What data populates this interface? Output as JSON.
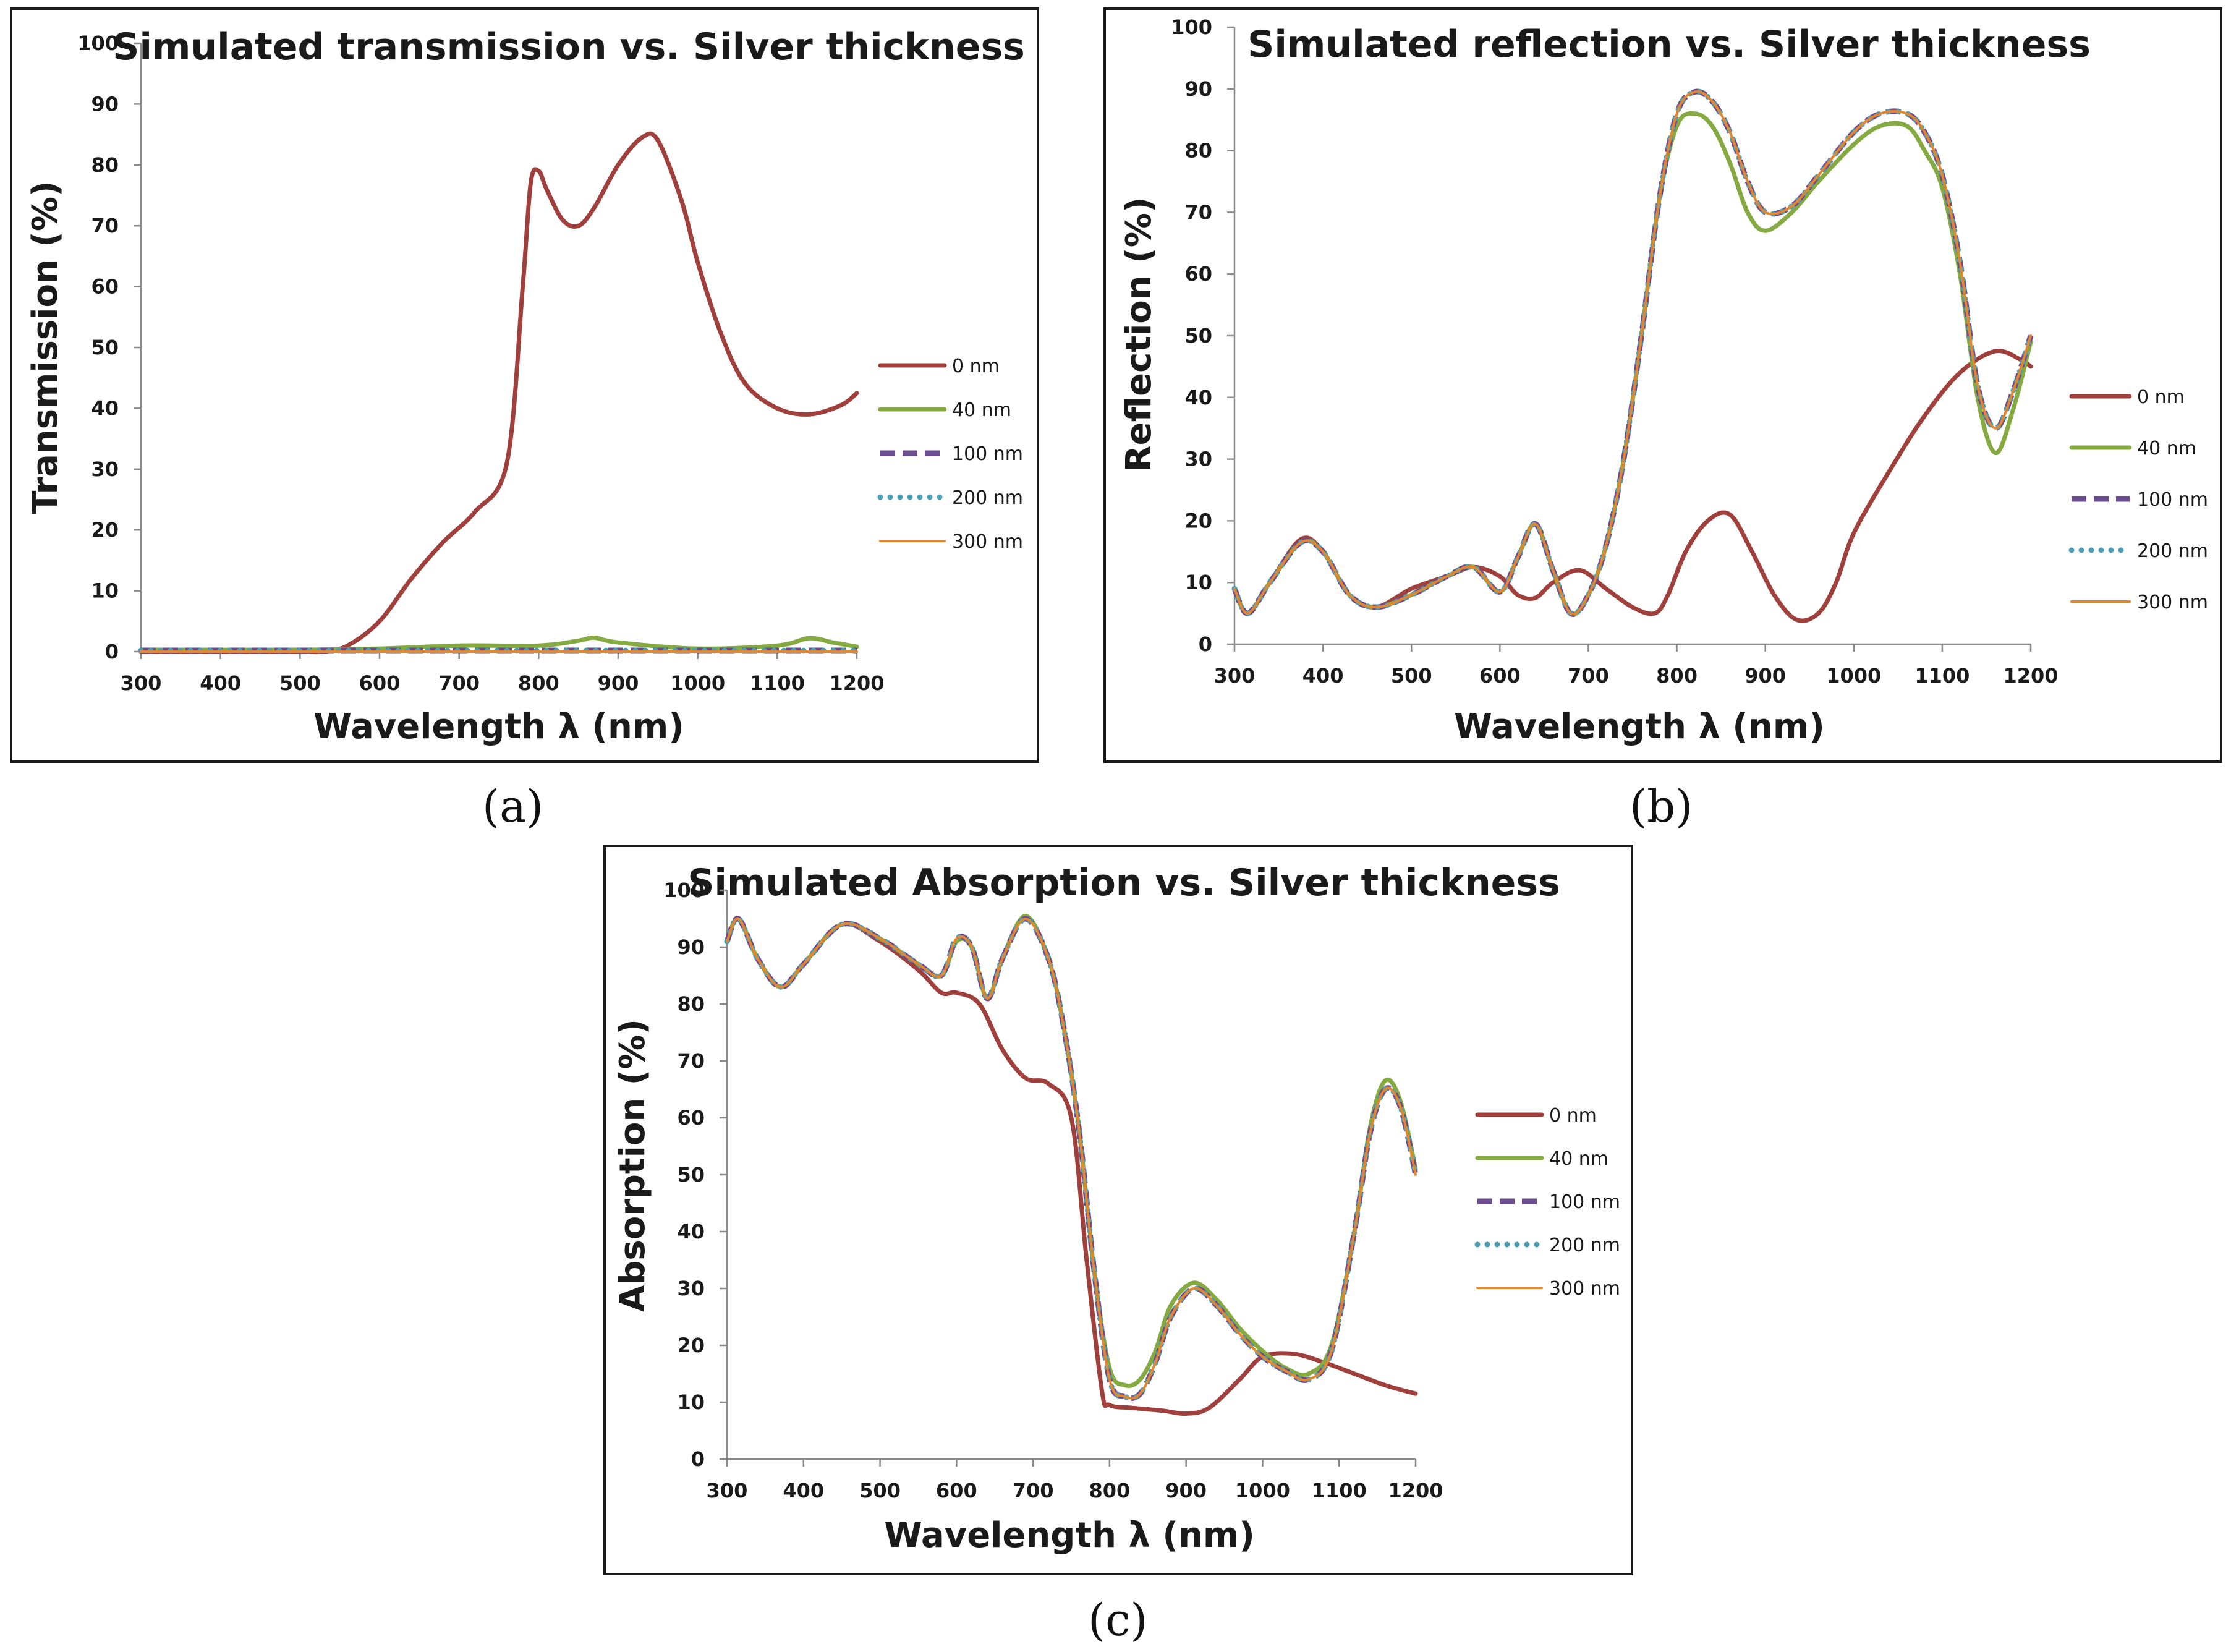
{
  "series_styles": [
    {
      "name": "0 nm",
      "color": "#a0403c",
      "dash": "",
      "width": 7,
      "cap": "round"
    },
    {
      "name": "40 nm",
      "color": "#86aa42",
      "dash": "",
      "width": 7,
      "cap": "round"
    },
    {
      "name": "100 nm",
      "color": "#6b4c8e",
      "dash": "24 12",
      "width": 9,
      "cap": "butt"
    },
    {
      "name": "200 nm",
      "color": "#4a9fb5",
      "dash": "0 16",
      "width": 9,
      "cap": "round"
    },
    {
      "name": "300 nm",
      "color": "#e2862f",
      "dash": "",
      "width": 4,
      "cap": "round"
    }
  ],
  "panel_labels": [
    "(a)",
    "(b)",
    "(c)"
  ],
  "chart_data": [
    {
      "type": "line",
      "title": "Simulated transmission vs. Silver thickness",
      "xlabel": "Wavelength λ (nm)",
      "ylabel": "Transmission (%)",
      "xlim": [
        300,
        1200
      ],
      "ylim": [
        0,
        100
      ],
      "xticks": [
        300,
        400,
        500,
        600,
        700,
        800,
        900,
        1000,
        1100,
        1200
      ],
      "yticks": [
        0,
        10,
        20,
        30,
        40,
        50,
        60,
        70,
        80,
        90,
        100
      ],
      "legend_position": "right",
      "series": [
        {
          "name": "0 nm",
          "x": [
            300,
            400,
            500,
            530,
            560,
            600,
            640,
            680,
            720,
            760,
            780,
            790,
            800,
            810,
            830,
            850,
            870,
            900,
            930,
            950,
            980,
            1000,
            1030,
            1060,
            1100,
            1140,
            1180,
            1200
          ],
          "y": [
            0,
            0,
            0,
            0,
            1,
            5,
            12,
            18,
            23,
            31,
            60,
            77,
            79,
            76,
            71,
            70,
            73,
            80,
            84.5,
            84,
            74,
            64,
            52,
            44,
            40,
            39,
            40.5,
            42.5
          ]
        },
        {
          "name": "40 nm",
          "x": [
            300,
            500,
            600,
            700,
            800,
            850,
            870,
            900,
            1000,
            1100,
            1140,
            1170,
            1200
          ],
          "y": [
            0.3,
            0.3,
            0.5,
            1,
            1,
            1.8,
            2.3,
            1.5,
            0.5,
            1,
            2.2,
            1.5,
            0.8
          ]
        },
        {
          "name": "100 nm",
          "x": [
            300,
            1200
          ],
          "y": [
            0.2,
            0.2
          ]
        },
        {
          "name": "200 nm",
          "x": [
            300,
            1200
          ],
          "y": [
            0.2,
            0.2
          ]
        },
        {
          "name": "300 nm",
          "x": [
            300,
            1200
          ],
          "y": [
            0,
            0
          ]
        }
      ]
    },
    {
      "type": "line",
      "title": "Simulated reflection vs. Silver thickness",
      "xlabel": "Wavelength λ (nm)",
      "ylabel": "Reflection (%)",
      "xlim": [
        300,
        1200
      ],
      "ylim": [
        0,
        100
      ],
      "xticks": [
        300,
        400,
        500,
        600,
        700,
        800,
        900,
        1000,
        1100,
        1200
      ],
      "yticks": [
        0,
        10,
        20,
        30,
        40,
        50,
        60,
        70,
        80,
        90,
        100
      ],
      "legend_position": "right",
      "series": [
        {
          "name": "0 nm",
          "x": [
            300,
            315,
            340,
            375,
            400,
            430,
            460,
            500,
            540,
            570,
            600,
            620,
            640,
            660,
            690,
            720,
            750,
            775,
            790,
            810,
            835,
            860,
            885,
            910,
            935,
            960,
            980,
            1000,
            1040,
            1080,
            1120,
            1160,
            1190,
            1200
          ],
          "y": [
            9,
            5,
            10,
            17,
            15,
            8,
            6,
            9,
            11,
            12.5,
            11,
            8,
            7.5,
            10,
            12,
            9,
            6,
            5,
            8,
            15,
            20,
            21,
            15,
            8,
            4,
            5,
            10,
            18,
            28,
            37,
            44,
            47.5,
            46,
            45
          ]
        },
        {
          "name": "40 nm",
          "x": [
            300,
            315,
            340,
            375,
            400,
            430,
            460,
            500,
            540,
            570,
            600,
            620,
            640,
            660,
            680,
            700,
            720,
            740,
            760,
            780,
            800,
            820,
            840,
            860,
            880,
            900,
            930,
            960,
            1000,
            1030,
            1060,
            1080,
            1100,
            1120,
            1140,
            1160,
            1180,
            1200
          ],
          "y": [
            9,
            5,
            10,
            16.5,
            15,
            8,
            6,
            8,
            11,
            12.5,
            8.5,
            14,
            19.5,
            12,
            5,
            8,
            16,
            30,
            50,
            72,
            84,
            86,
            84,
            78,
            70,
            67,
            70,
            75,
            81,
            84,
            84,
            80,
            74,
            60,
            40,
            31,
            38,
            49
          ]
        },
        {
          "name": "100 nm",
          "x": [
            300,
            315,
            340,
            375,
            400,
            430,
            460,
            500,
            540,
            570,
            600,
            620,
            640,
            660,
            680,
            700,
            720,
            740,
            760,
            780,
            800,
            820,
            840,
            860,
            880,
            900,
            930,
            960,
            1000,
            1030,
            1060,
            1080,
            1100,
            1120,
            1140,
            1160,
            1180,
            1200
          ],
          "y": [
            9,
            5,
            10,
            16.5,
            15,
            8,
            6,
            8,
            11,
            12.5,
            8.5,
            14,
            19.5,
            12,
            5,
            8,
            16,
            30,
            50,
            72,
            86,
            89.5,
            88,
            83,
            75,
            70,
            71,
            76,
            83,
            86,
            86,
            83,
            76,
            62,
            42,
            35,
            41,
            50
          ]
        },
        {
          "name": "200 nm",
          "x": [
            300,
            315,
            340,
            375,
            400,
            430,
            460,
            500,
            540,
            570,
            600,
            620,
            640,
            660,
            680,
            700,
            720,
            740,
            760,
            780,
            800,
            820,
            840,
            860,
            880,
            900,
            930,
            960,
            1000,
            1030,
            1060,
            1080,
            1100,
            1120,
            1140,
            1160,
            1180,
            1200
          ],
          "y": [
            9,
            5,
            10,
            16.5,
            15,
            8,
            6,
            8,
            11,
            12.5,
            8.5,
            14,
            19.5,
            12,
            5,
            8,
            16,
            30,
            50,
            72,
            86,
            89.5,
            88,
            83,
            75,
            70,
            71,
            76,
            83,
            86,
            86,
            83,
            76,
            62,
            42,
            35,
            41,
            50
          ]
        },
        {
          "name": "300 nm",
          "x": [
            300,
            315,
            340,
            375,
            400,
            430,
            460,
            500,
            540,
            570,
            600,
            620,
            640,
            660,
            680,
            700,
            720,
            740,
            760,
            780,
            800,
            820,
            840,
            860,
            880,
            900,
            930,
            960,
            1000,
            1030,
            1060,
            1080,
            1100,
            1120,
            1140,
            1160,
            1180,
            1200
          ],
          "y": [
            9,
            5,
            10,
            16.5,
            15,
            8,
            6,
            8,
            11,
            12.5,
            8.5,
            14,
            19.5,
            12,
            5,
            8,
            16,
            30,
            50,
            72,
            86,
            89.5,
            88,
            83,
            75,
            70,
            71,
            76,
            83,
            86,
            86,
            83,
            76,
            62,
            42,
            35,
            41,
            50
          ]
        }
      ]
    },
    {
      "type": "line",
      "title": "Simulated Absorption vs. Silver thickness",
      "xlabel": "Wavelength λ (nm)",
      "ylabel": "Absorption (%)",
      "xlim": [
        300,
        1200
      ],
      "ylim": [
        0,
        100
      ],
      "xticks": [
        300,
        400,
        500,
        600,
        700,
        800,
        900,
        1000,
        1100,
        1200
      ],
      "yticks": [
        0,
        10,
        20,
        30,
        40,
        50,
        60,
        70,
        80,
        90,
        100
      ],
      "legend_position": "right",
      "series": [
        {
          "name": "0 nm",
          "x": [
            300,
            315,
            340,
            370,
            400,
            450,
            500,
            550,
            580,
            600,
            630,
            660,
            690,
            720,
            750,
            770,
            790,
            800,
            830,
            870,
            900,
            930,
            970,
            1000,
            1040,
            1080,
            1120,
            1160,
            1200
          ],
          "y": [
            91,
            95,
            88,
            83,
            87,
            94,
            91,
            86,
            82,
            82,
            80,
            72,
            67,
            66,
            60,
            35,
            12,
            9.5,
            9,
            8.5,
            8,
            9,
            14,
            18,
            18.5,
            17,
            15,
            13,
            11.5
          ]
        },
        {
          "name": "40 nm",
          "x": [
            300,
            315,
            340,
            370,
            400,
            450,
            500,
            550,
            580,
            600,
            620,
            640,
            660,
            690,
            720,
            740,
            760,
            780,
            800,
            820,
            840,
            860,
            880,
            910,
            940,
            970,
            1000,
            1030,
            1060,
            1090,
            1120,
            1140,
            1160,
            1180,
            1200
          ],
          "y": [
            91,
            95,
            88,
            83,
            87,
            94,
            91.5,
            87,
            85,
            91,
            90,
            81,
            88,
            95.5,
            88,
            76,
            58,
            33,
            16,
            13,
            14,
            19,
            27,
            31,
            28,
            23,
            19,
            16,
            15,
            20,
            40,
            58,
            66.5,
            63,
            51
          ]
        },
        {
          "name": "100 nm",
          "x": [
            300,
            315,
            340,
            370,
            400,
            450,
            500,
            550,
            580,
            600,
            620,
            640,
            660,
            690,
            720,
            740,
            760,
            780,
            800,
            820,
            840,
            860,
            880,
            910,
            940,
            970,
            1000,
            1030,
            1060,
            1090,
            1120,
            1140,
            1160,
            1180,
            1200
          ],
          "y": [
            91,
            95,
            88,
            83,
            87,
            94,
            91.5,
            87,
            85,
            91.5,
            90,
            81,
            88,
            95,
            88,
            76,
            58,
            33,
            14,
            11,
            11.5,
            17,
            25,
            30,
            27,
            22,
            18,
            15.5,
            14,
            19,
            40,
            57,
            65,
            62,
            50
          ]
        },
        {
          "name": "200 nm",
          "x": [
            300,
            315,
            340,
            370,
            400,
            450,
            500,
            550,
            580,
            600,
            620,
            640,
            660,
            690,
            720,
            740,
            760,
            780,
            800,
            820,
            840,
            860,
            880,
            910,
            940,
            970,
            1000,
            1030,
            1060,
            1090,
            1120,
            1140,
            1160,
            1180,
            1200
          ],
          "y": [
            91,
            95,
            88,
            83,
            87,
            94,
            91.5,
            87,
            85,
            91.5,
            90,
            81,
            88,
            95,
            88,
            76,
            58,
            33,
            14,
            11,
            11.5,
            17,
            25,
            30,
            27,
            22,
            18,
            15.5,
            14,
            19,
            40,
            57,
            65,
            62,
            50
          ]
        },
        {
          "name": "300 nm",
          "x": [
            300,
            315,
            340,
            370,
            400,
            450,
            500,
            550,
            580,
            600,
            620,
            640,
            660,
            690,
            720,
            740,
            760,
            780,
            800,
            820,
            840,
            860,
            880,
            910,
            940,
            970,
            1000,
            1030,
            1060,
            1090,
            1120,
            1140,
            1160,
            1180,
            1200
          ],
          "y": [
            91,
            95,
            88,
            83,
            87,
            94,
            91.5,
            87,
            85,
            91.5,
            90,
            81,
            88,
            95,
            88,
            76,
            58,
            33,
            14,
            11,
            11.5,
            17,
            25,
            30,
            27,
            22,
            18,
            15.5,
            14,
            19,
            40,
            57,
            65,
            62,
            50
          ]
        }
      ]
    }
  ]
}
